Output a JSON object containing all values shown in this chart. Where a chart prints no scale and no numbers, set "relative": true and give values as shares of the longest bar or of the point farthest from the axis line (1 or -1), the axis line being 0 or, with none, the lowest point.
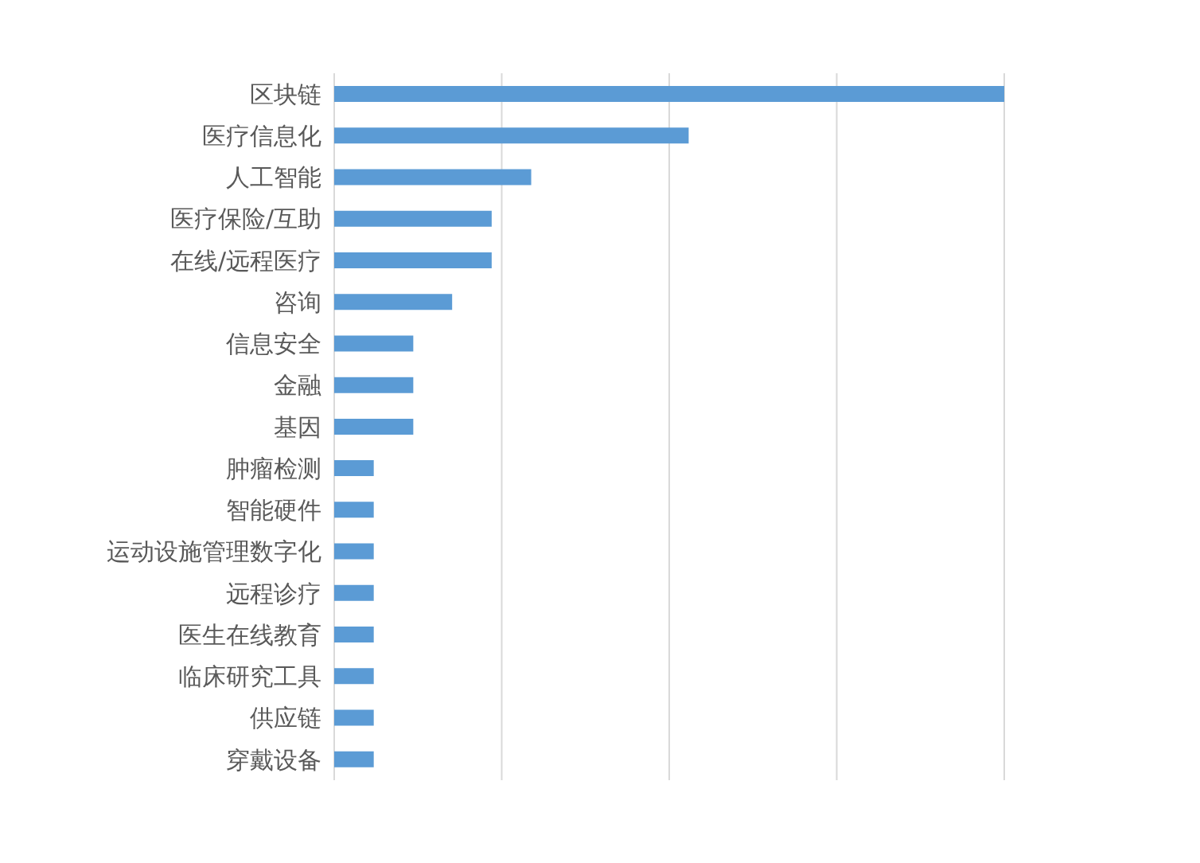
{
  "chart_data": {
    "type": "bar",
    "orientation": "horizontal",
    "relative": true,
    "grid": "x",
    "categories": [
      "区块链",
      "医疗信息化",
      "人工智能",
      "医疗保险/互助",
      "在线/远程医疗",
      "咨询",
      "信息安全",
      "金融",
      "基因",
      "肿瘤检测",
      "智能硬件",
      "运动设施管理数字化",
      "远程诊疗",
      "医生在线教育",
      "临床研究工具",
      "供应链",
      "穿戴设备"
    ],
    "values": [
      1,
      0.529,
      0.294,
      0.235,
      0.235,
      0.176,
      0.118,
      0.118,
      0.118,
      0.059,
      0.059,
      0.059,
      0.059,
      0.059,
      0.059,
      0.059,
      0.059
    ],
    "color": "#5b9bd5"
  }
}
